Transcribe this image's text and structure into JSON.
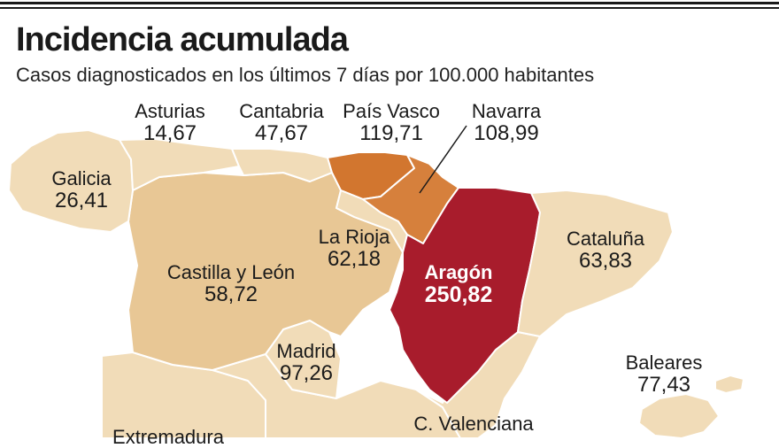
{
  "title": "Incidencia acumulada",
  "subtitle": "Casos diagnosticados en los últimos 7 días por 100.000 habitantes",
  "colors": {
    "low": "#f1dcb8",
    "mid": "#e8c795",
    "pv": "#d2762f",
    "nav": "#d6803c",
    "high": "#a81c2c",
    "border": "#ffffff"
  },
  "regions": [
    {
      "id": "asturias",
      "name": "Asturias",
      "value": "14,67"
    },
    {
      "id": "cantabria",
      "name": "Cantabria",
      "value": "47,67"
    },
    {
      "id": "pais-vasco",
      "name": "País Vasco",
      "value": "119,71"
    },
    {
      "id": "navarra",
      "name": "Navarra",
      "value": "108,99"
    },
    {
      "id": "galicia",
      "name": "Galicia",
      "value": "26,41"
    },
    {
      "id": "la-rioja",
      "name": "La Rioja",
      "value": "62,18"
    },
    {
      "id": "castilla-leon",
      "name": "Castilla y León",
      "value": "58,72"
    },
    {
      "id": "aragon",
      "name": "Aragón",
      "value": "250,82"
    },
    {
      "id": "cataluna",
      "name": "Cataluña",
      "value": "63,83"
    },
    {
      "id": "madrid",
      "name": "Madrid",
      "value": "97,26"
    },
    {
      "id": "baleares",
      "name": "Baleares",
      "value": "77,43"
    },
    {
      "id": "c-valenciana",
      "name": "C. Valenciana",
      "value": ""
    },
    {
      "id": "extremadura",
      "name": "Extremadura",
      "value": ""
    }
  ]
}
